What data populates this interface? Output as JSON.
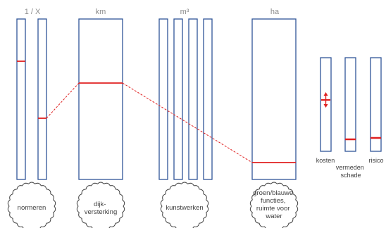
{
  "unit_labels": {
    "one_over_x": "1 / X",
    "km": "km",
    "m3": "m³",
    "ha": "ha"
  },
  "circles": {
    "normeren": [
      "normeren"
    ],
    "dijkversterking": [
      "dijk-",
      "versterking"
    ],
    "kunstwerken": [
      "kunstwerken"
    ],
    "groen_blauw": [
      "groen/blauwe",
      "functies,",
      "ruimte voor",
      "water"
    ]
  },
  "side_labels": {
    "kosten": "kosten",
    "vermeden_schade": [
      "vermeden",
      "schade"
    ],
    "risico": "risico"
  },
  "colors": {
    "bar_outline": "#2f5597",
    "marker_red": "#e02020",
    "unit_label_gray": "#8c8c8c",
    "circle_outline": "#404040"
  }
}
